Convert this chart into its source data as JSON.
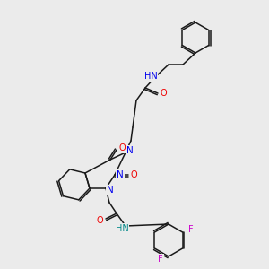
{
  "background_color": "#ebebeb",
  "bond_color": "#1a1a1a",
  "atom_colors": {
    "N": "#0000ee",
    "O": "#ee0000",
    "F": "#cc00cc",
    "H": "#008888",
    "C": "#1a1a1a"
  },
  "lw": 1.1,
  "fontsize": 7.0
}
